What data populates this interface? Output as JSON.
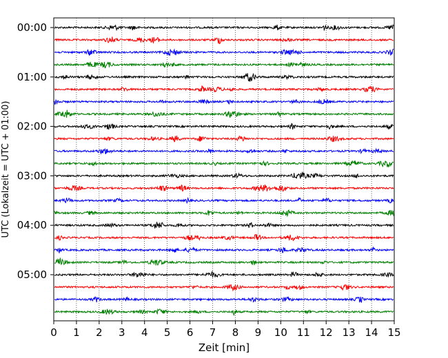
{
  "chart_data": {
    "type": "line",
    "subtype": "helicorder",
    "xlabel": "Zeit  [min]",
    "ylabel": "UTC (Lokalzeit = UTC + 01:00)",
    "xlim": [
      0,
      15
    ],
    "x_ticks": [
      "0",
      "1",
      "2",
      "3",
      "4",
      "5",
      "6",
      "7",
      "8",
      "9",
      "10",
      "11",
      "12",
      "13",
      "14",
      "15"
    ],
    "y_tick_labels": [
      "00:00",
      "01:00",
      "02:00",
      "03:00",
      "04:00",
      "05:00"
    ],
    "minutes_per_line": 15,
    "line_count": 24,
    "line_colors": [
      "#000000",
      "#ff0000",
      "#0000ff",
      "#008000"
    ],
    "grid": "vertical dotted at each minute",
    "noise_amplitude_note": "continuous low-amplitude background noise on every trace"
  }
}
